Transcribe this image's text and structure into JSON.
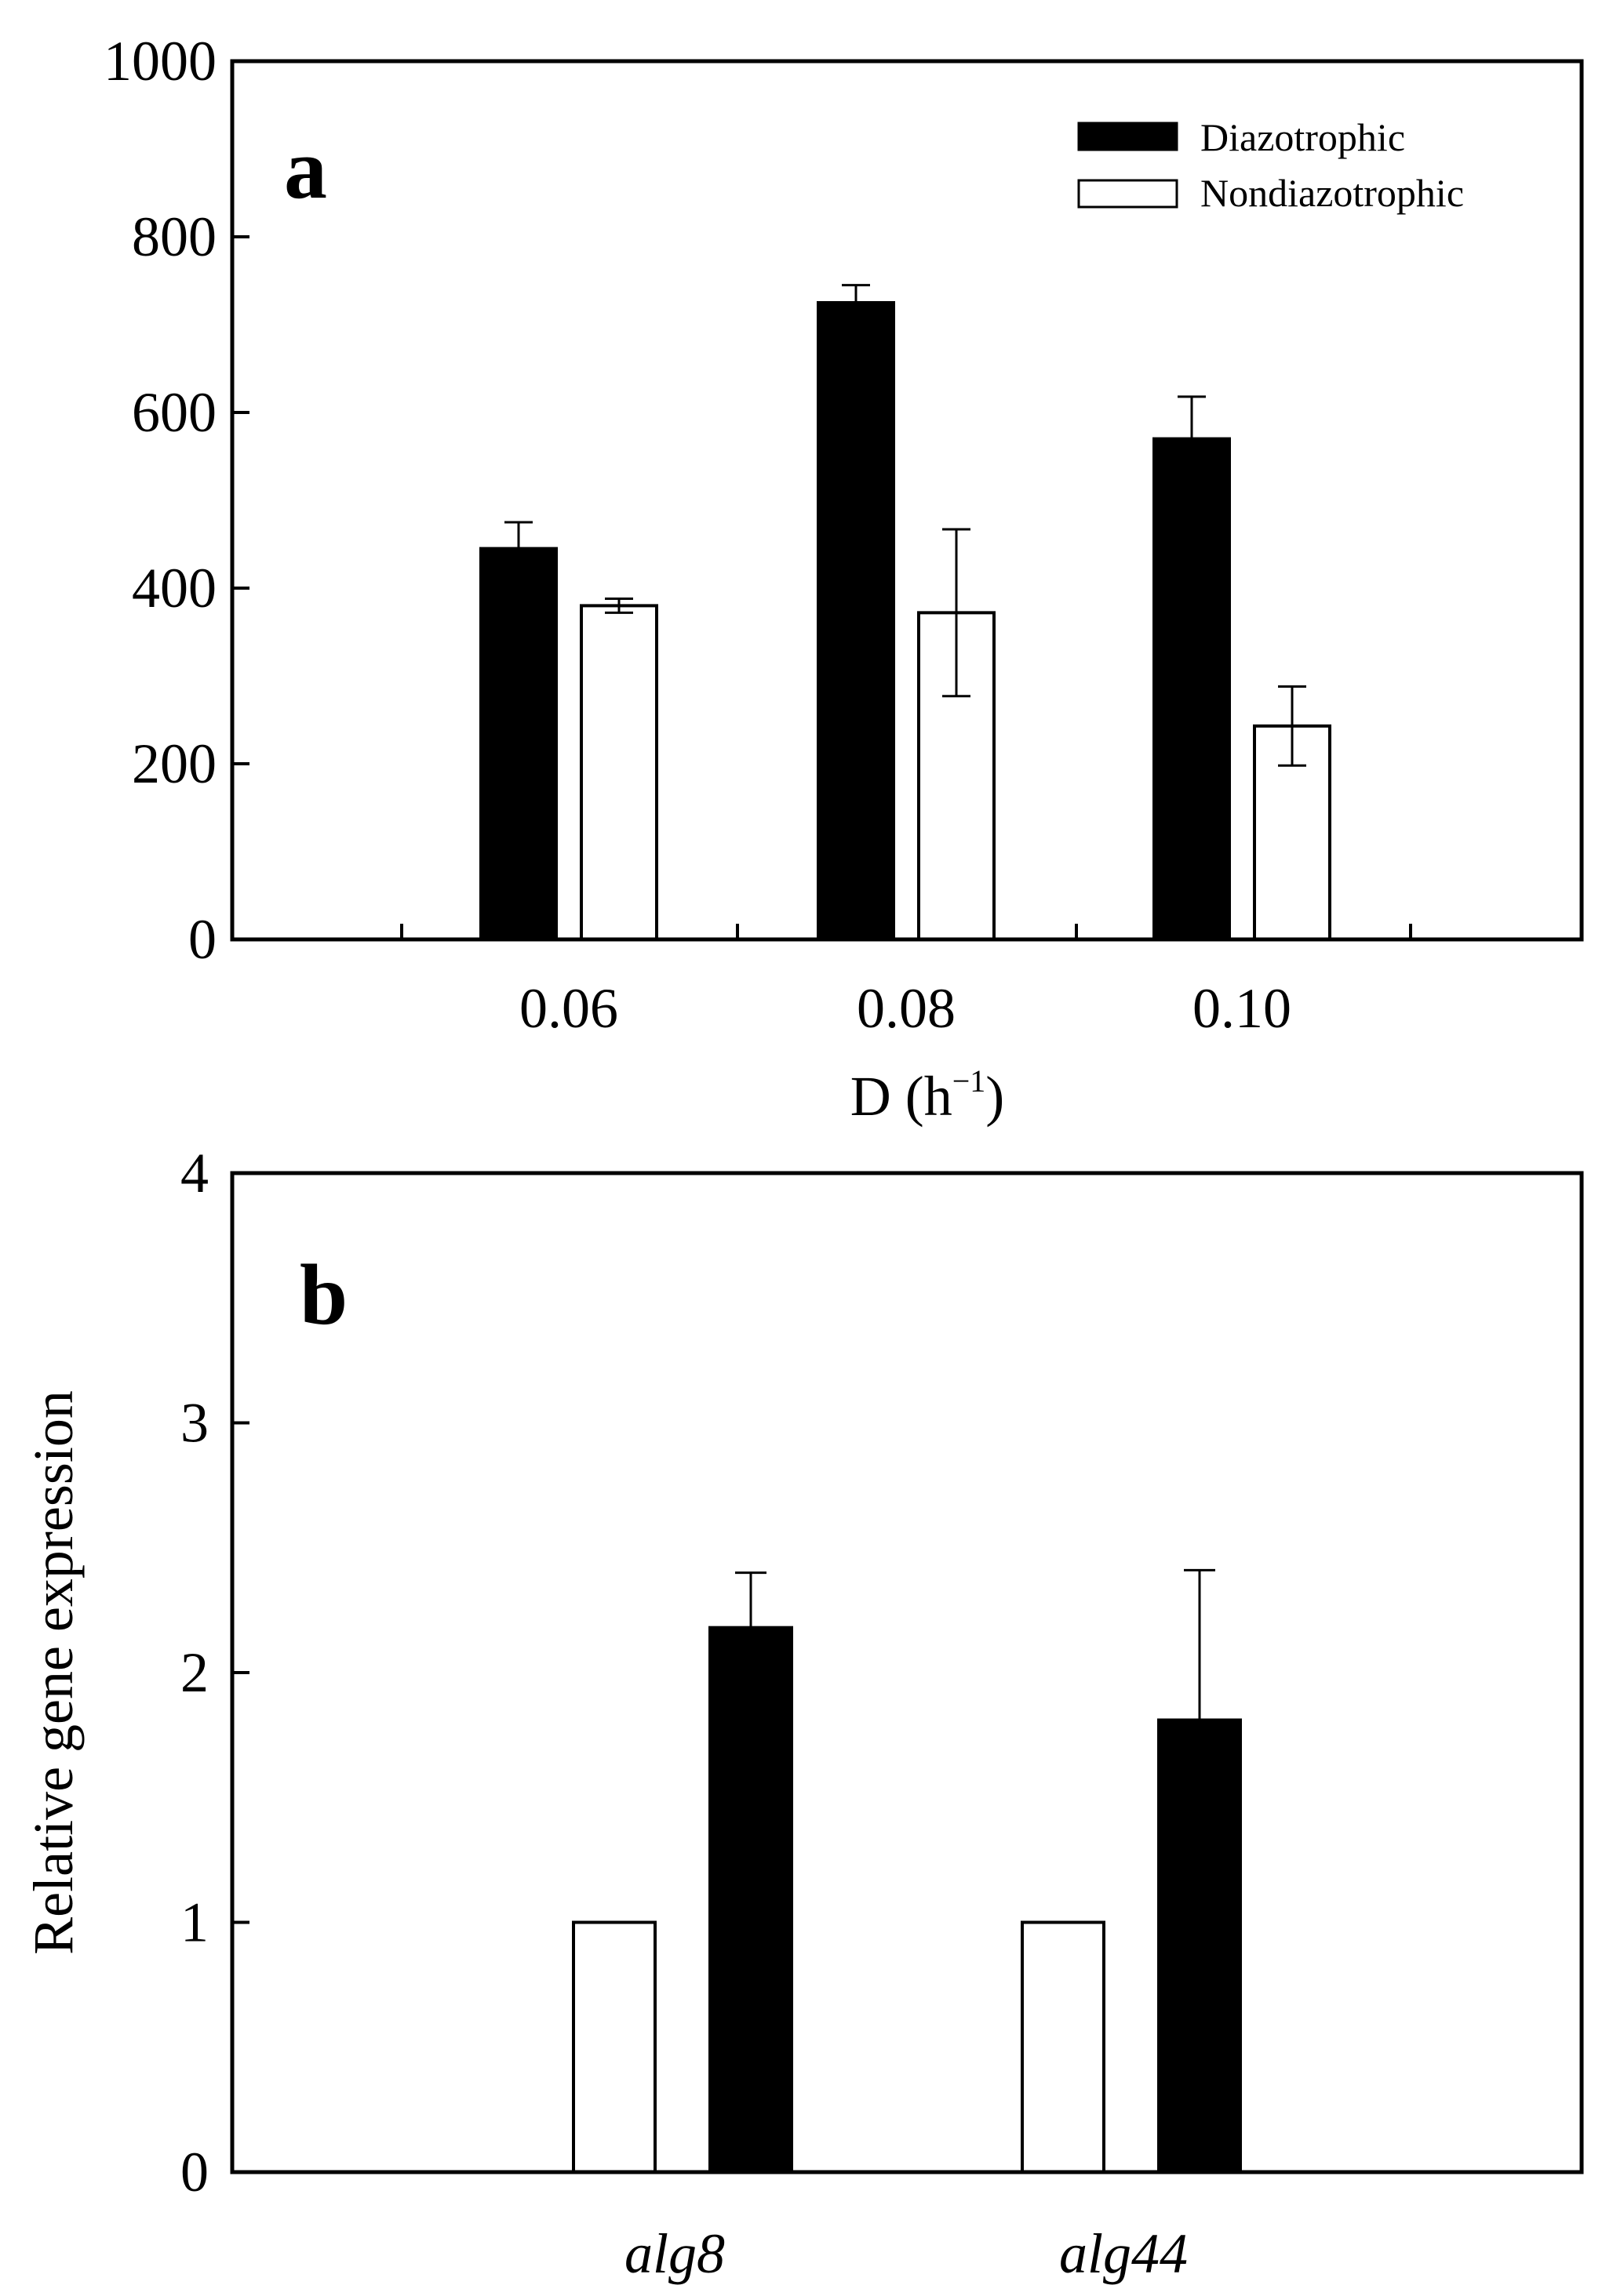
{
  "chart_data": [
    {
      "panel_label": "a",
      "type": "bar",
      "categories": [
        "0.06",
        "0.08",
        "0.10"
      ],
      "series": [
        {
          "name": "Diazotrophic",
          "fill": "#000000",
          "values": [
            445,
            725,
            570
          ],
          "errors": [
            30,
            20,
            48
          ]
        },
        {
          "name": "Nondiazotrophic",
          "fill": "#ffffff",
          "values": [
            380,
            372,
            243
          ],
          "errors": [
            8,
            95,
            45
          ]
        }
      ],
      "xlabel": "D (h",
      "xlabel_sup": "−1",
      "xlabel_close": ")",
      "ylabel": "",
      "ylim": [
        0,
        1000
      ],
      "yticks": [
        "0",
        "200",
        "400",
        "600",
        "800",
        "1000"
      ],
      "legend": {
        "placement": "top-right",
        "entries": [
          "Diazotrophic",
          "Nondiazotrophic"
        ]
      },
      "grid": false
    },
    {
      "panel_label": "b",
      "type": "bar",
      "categories": [
        "alg8",
        "alg44"
      ],
      "categories_italic": true,
      "series": [
        {
          "name": "Nondiazotrophic",
          "fill": "#ffffff",
          "values": [
            1.0,
            1.0
          ],
          "errors": [
            0,
            0
          ]
        },
        {
          "name": "Diazotrophic",
          "fill": "#000000",
          "values": [
            2.18,
            1.81
          ],
          "errors": [
            0.22,
            0.6
          ]
        }
      ],
      "xlabel": "",
      "ylabel": "Relative gene expression",
      "ylim": [
        0,
        4
      ],
      "yticks": [
        "0",
        "1",
        "2",
        "3",
        "4"
      ],
      "grid": false
    }
  ]
}
